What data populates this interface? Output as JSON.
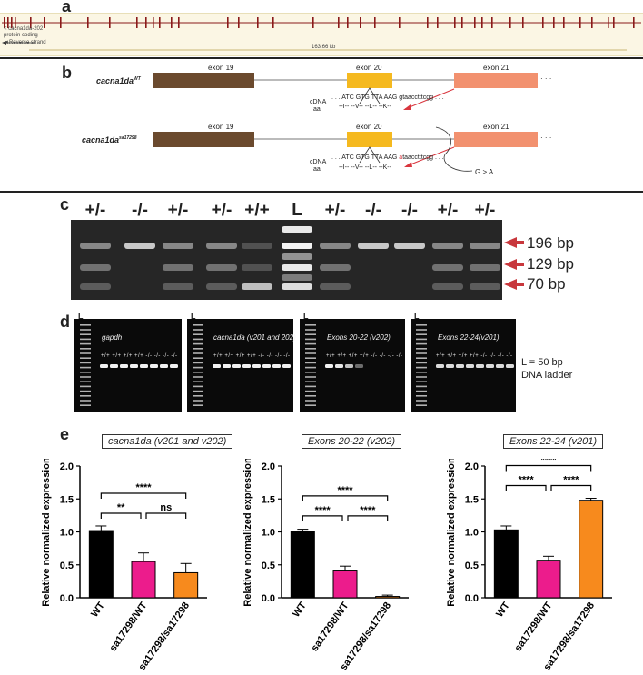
{
  "panel_labels": {
    "a": "a",
    "b": "b",
    "c": "c",
    "d": "d",
    "e": "e"
  },
  "panel_a": {
    "transcript": "< cacna1da-202",
    "biotype": "protein coding",
    "strand": "◄Reverse strand",
    "length": "163.66 kb"
  },
  "panel_b": {
    "wt_gene": "cacna1da",
    "wt_sup": "WT",
    "mut_gene": "cacna1da",
    "mut_sup": "sa17298",
    "exon19": "exon 19",
    "exon20": "exon 20",
    "exon21": "exon 21",
    "dots": "· · ·",
    "cdna_label": "cDNA",
    "aa_label": "aa",
    "wt_seq_prefix": ". . . ATC GTG TTA AAG ",
    "wt_seq_intron": "gtaacctttcgg . . .",
    "wt_aa": "--I-- --V-- --L-- --K--",
    "mut_seq_prefix": ". . . ATC GTG TTA AAG ",
    "mut_seq_a": "a",
    "mut_seq_rest": "taacctttcgg . . .",
    "mut_aa": "--I-- --V-- --L-- --K--",
    "mutation": "G > A",
    "colors": {
      "exon19": "#6b4a2e",
      "exon20": "#f5b91f",
      "exon21": "#f2916f",
      "arrow": "#d9363e"
    }
  },
  "panel_c": {
    "genotypes": [
      "+/-",
      "-/-",
      "+/-",
      "+/-",
      "+/+",
      "L",
      "+/-",
      "-/-",
      "-/-",
      "+/-",
      "+/-"
    ],
    "sizes": [
      "196 bp",
      "129 bp",
      "70 bp"
    ],
    "arrow_color": "#c8373c"
  },
  "panel_d": {
    "gels": [
      {
        "ladder": "L",
        "title": "gapdh",
        "lanes": "+/+ +/+ +/+ +/+ -/- -/- -/- -/-"
      },
      {
        "ladder": "L",
        "title": "cacna1da (v201 and 202)",
        "lanes": "+/+ +/+ +/+ +/+ -/- -/- -/- -/-"
      },
      {
        "ladder": "L",
        "title": "Exons 20-22 (v202)",
        "lanes": "+/+ +/+ +/+ +/+ -/- -/- -/- -/-"
      },
      {
        "ladder": "L",
        "title": "Exons 22-24(v201)",
        "lanes": "+/+ +/+ +/+ +/+ -/- -/- -/- -/-"
      }
    ],
    "note_line1": "L = 50 bp",
    "note_line2": "DNA ladder"
  },
  "chart_data": [
    {
      "type": "bar",
      "title": "cacna1da (v201 and v202)",
      "ylabel": "Relative normalized expression",
      "categories": [
        "WT",
        "sa17298/WT",
        "sa17298/sa17298"
      ],
      "values": [
        1.02,
        0.55,
        0.38
      ],
      "errors": [
        0.07,
        0.13,
        0.14
      ],
      "colors": [
        "#000000",
        "#ec1c8c",
        "#f78a1d"
      ],
      "ylim": [
        0,
        2.0
      ],
      "yticks": [
        "0.0",
        "0.5",
        "1.0",
        "1.5",
        "2.0"
      ],
      "significance": [
        {
          "from": 0,
          "to": 2,
          "label": "****"
        },
        {
          "from": 0,
          "to": 1,
          "label": "**"
        },
        {
          "from": 1,
          "to": 2,
          "label": "ns"
        }
      ]
    },
    {
      "type": "bar",
      "title": "Exons 20-22 (v202)",
      "ylabel": "Relative normalized expression",
      "categories": [
        "WT",
        "sa17298/WT",
        "sa17298/sa17298"
      ],
      "values": [
        1.01,
        0.42,
        0.02
      ],
      "errors": [
        0.03,
        0.06,
        0.02
      ],
      "colors": [
        "#000000",
        "#ec1c8c",
        "#f78a1d"
      ],
      "ylim": [
        0,
        2.0
      ],
      "yticks": [
        "0.0",
        "0.5",
        "1.0",
        "1.5",
        "2.0"
      ],
      "significance": [
        {
          "from": 0,
          "to": 2,
          "label": "****"
        },
        {
          "from": 0,
          "to": 1,
          "label": "****"
        },
        {
          "from": 1,
          "to": 2,
          "label": "****"
        }
      ]
    },
    {
      "type": "bar",
      "title": "Exons 22-24 (v201)",
      "ylabel": "Relative normalized expression",
      "categories": [
        "WT",
        "sa17298/WT",
        "sa17298/sa17298"
      ],
      "values": [
        1.03,
        0.57,
        1.48
      ],
      "errors": [
        0.06,
        0.06,
        0.03
      ],
      "colors": [
        "#000000",
        "#ec1c8c",
        "#f78a1d"
      ],
      "ylim": [
        0,
        2.0
      ],
      "yticks": [
        "0.0",
        "0.5",
        "1.0",
        "1.5",
        "2.0"
      ],
      "significance": [
        {
          "from": 0,
          "to": 2,
          "label": "****"
        },
        {
          "from": 0,
          "to": 1,
          "label": "****"
        },
        {
          "from": 1,
          "to": 2,
          "label": "****"
        }
      ]
    }
  ]
}
